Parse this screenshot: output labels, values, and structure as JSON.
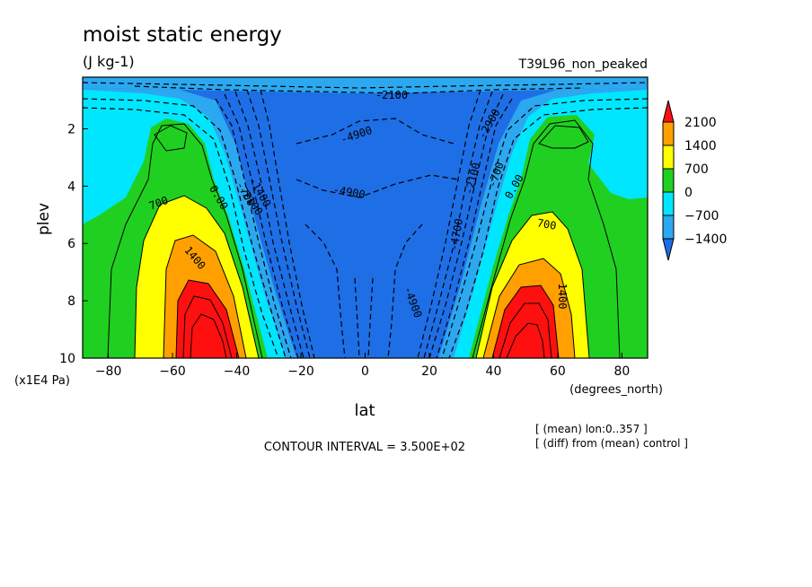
{
  "chart_data": {
    "type": "heatmap",
    "title": "moist static energy",
    "units": "(J kg-1)",
    "experiment": "T39L96_non_peaked",
    "xlabel": "lat",
    "x_units": "(degrees_north)",
    "ylabel": "plev",
    "y_units": "(x1E4 Pa)",
    "xlim": [
      -88,
      88
    ],
    "ylim": [
      10,
      0.2
    ],
    "x_ticks": [
      -80,
      -60,
      -40,
      -20,
      0,
      20,
      40,
      60,
      80
    ],
    "x_tick_labels": [
      "−80",
      "−60",
      "−40",
      "−20",
      "0",
      "20",
      "40",
      "60",
      "80"
    ],
    "y_ticks": [
      2,
      4,
      6,
      8,
      10
    ],
    "y_tick_labels": [
      "2",
      "4",
      "6",
      "8",
      "10"
    ],
    "contour_interval_text": "CONTOUR INTERVAL = 3.500E+02",
    "notes": [
      "[ (mean) lon:0..357 ]",
      "[ (diff) from (mean) control ]"
    ],
    "colorbar": {
      "levels": [
        -1400,
        -700,
        0,
        700,
        1400,
        2100
      ],
      "labels": [
        "2100",
        "1400",
        "700",
        "0",
        "−700",
        "−1400"
      ],
      "colors": [
        "#1e6ee6",
        "#2ba8f0",
        "#00e6ff",
        "#20d020",
        "#ffff00",
        "#ffa000",
        "#ff1010"
      ]
    },
    "contour_labels": [
      "-4900",
      "-4900",
      "-4700",
      "-2900",
      "-2100",
      "-2100",
      "-1400",
      "-700",
      "0.00",
      "0.00",
      "-700",
      "700",
      "700",
      "1400",
      "1400",
      "-2100",
      "-4900"
    ]
  }
}
